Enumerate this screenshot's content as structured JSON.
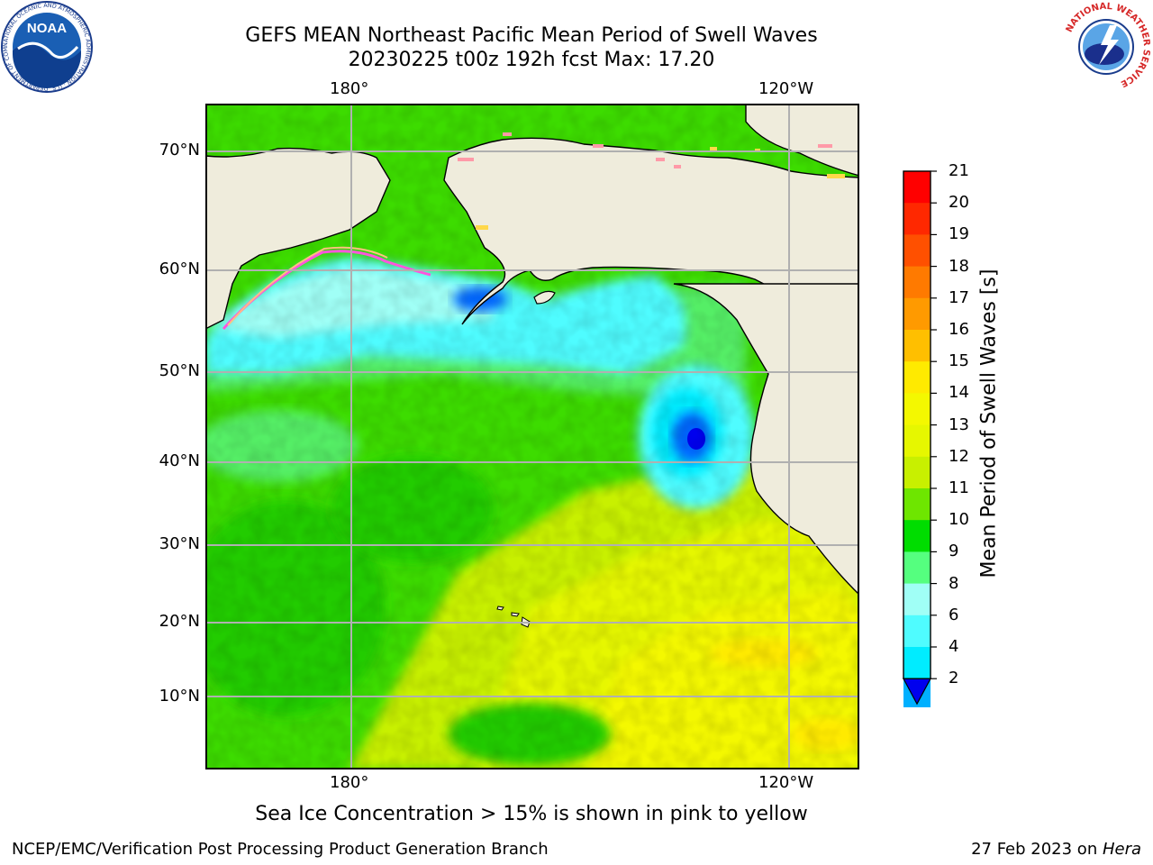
{
  "header": {
    "title_line1": "GEFS MEAN Northeast Pacific Mean Period of Swell Waves",
    "title_line2": "20230225 t00z 192h fcst   Max: 17.20"
  },
  "map": {
    "top_lon_labels": [
      "180°",
      "120°W"
    ],
    "bottom_lon_labels": [
      "180°",
      "120°W"
    ],
    "lat_labels": [
      "70°N",
      "60°N",
      "50°N",
      "40°N",
      "30°N",
      "20°N",
      "10°N"
    ],
    "land_color": "#efecdc",
    "ocean_base_color": "#33dd00"
  },
  "colorbar": {
    "label": "Mean Period of Swell Waves [s]",
    "ticks": [
      "21",
      "20",
      "19",
      "18",
      "17",
      "16",
      "15",
      "14",
      "13",
      "12",
      "11",
      "10",
      "9",
      "8",
      "6",
      "4",
      "2"
    ],
    "colors_top_to_bottom": [
      "#ff0000",
      "#ff2800",
      "#ff5000",
      "#ff7a00",
      "#ff9a00",
      "#ffbf00",
      "#ffea00",
      "#f4f800",
      "#e6f700",
      "#c8f000",
      "#6ee600",
      "#00dd00",
      "#55ff7f",
      "#a0fff6",
      "#4ffcff",
      "#00ecff",
      "#00b0ff",
      "#0066ff"
    ],
    "extend_color": "#0000ee"
  },
  "caption": "Sea Ice Concentration > 15% is shown in pink to yellow",
  "footer": {
    "left": "NCEP/EMC/Verification Post Processing Product Generation Branch",
    "right_prefix": "27 Feb 2023 on ",
    "right_machine": "Hera"
  },
  "logos": {
    "noaa_text": "NOAA",
    "noaa_ring_text": "NATIONAL OCEANIC AND ATMOSPHERIC ADMINISTRATION · U.S. DEPARTMENT OF COMMERCE",
    "nws_ring_text": "NATIONAL WEATHER SERVICE"
  }
}
